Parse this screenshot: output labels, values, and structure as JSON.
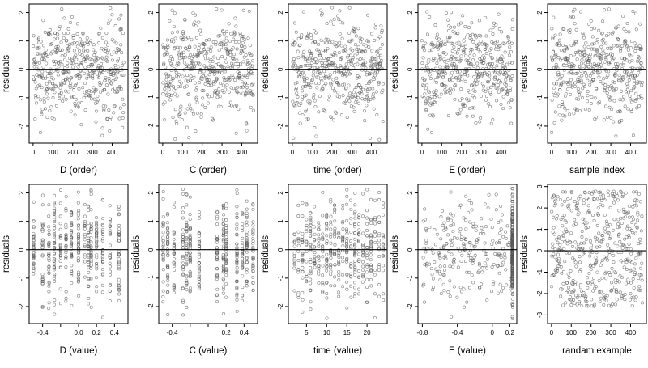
{
  "chart_data": [
    {
      "type": "scatter",
      "xlabel": "D (order)",
      "ylabel": "residuals",
      "xlim": [
        -20,
        480
      ],
      "ylim": [
        -2.6,
        2.3
      ],
      "xticks": [
        0,
        100,
        200,
        300,
        400
      ],
      "yticks": [
        -2,
        -1,
        0,
        1,
        2
      ],
      "hline": 0,
      "n_points": 460,
      "x_kind": "index",
      "y_profile": "normal",
      "point_color": "#555555",
      "grid": false
    },
    {
      "type": "scatter",
      "xlabel": "C (order)",
      "ylabel": "residuals",
      "xlim": [
        -20,
        480
      ],
      "ylim": [
        -2.6,
        2.3
      ],
      "xticks": [
        0,
        100,
        200,
        300,
        400
      ],
      "yticks": [
        -2,
        -1,
        0,
        1,
        2
      ],
      "hline": 0,
      "n_points": 460,
      "x_kind": "index",
      "y_profile": "normal",
      "point_color": "#555555",
      "grid": false
    },
    {
      "type": "scatter",
      "xlabel": "time (order)",
      "ylabel": "residuals",
      "xlim": [
        -20,
        480
      ],
      "ylim": [
        -2.6,
        2.3
      ],
      "xticks": [
        0,
        100,
        200,
        300,
        400
      ],
      "yticks": [
        -2,
        -1,
        0,
        1,
        2
      ],
      "hline": 0,
      "n_points": 460,
      "x_kind": "index",
      "y_profile": "normal",
      "point_color": "#555555",
      "grid": false
    },
    {
      "type": "scatter",
      "xlabel": "E (order)",
      "ylabel": "residuals",
      "xlim": [
        -20,
        480
      ],
      "ylim": [
        -2.6,
        2.3
      ],
      "xticks": [
        0,
        100,
        200,
        300,
        400
      ],
      "yticks": [
        -2,
        -1,
        0,
        1,
        2
      ],
      "hline": 0,
      "n_points": 460,
      "x_kind": "index",
      "y_profile": "normal",
      "point_color": "#555555",
      "grid": false
    },
    {
      "type": "scatter",
      "xlabel": "sample index",
      "ylabel": "residuals",
      "xlim": [
        -20,
        480
      ],
      "ylim": [
        -2.6,
        2.3
      ],
      "xticks": [
        0,
        100,
        200,
        300,
        400
      ],
      "yticks": [
        -2,
        -1,
        0,
        1,
        2
      ],
      "hline": 0,
      "n_points": 460,
      "x_kind": "index",
      "y_profile": "normal",
      "point_color": "#555555",
      "grid": false
    },
    {
      "type": "scatter",
      "xlabel": "D (value)",
      "ylabel": "residuals",
      "xlim": [
        -0.55,
        0.55
      ],
      "ylim": [
        -2.6,
        2.3
      ],
      "xticks": [
        -0.4,
        -0.2,
        0.0,
        0.2,
        0.4
      ],
      "xtick_labels": [
        "-0.4",
        "",
        "0.0",
        "0.2",
        "0.4"
      ],
      "yticks": [
        -2,
        -1,
        0,
        1,
        2
      ],
      "hline": 0,
      "n_points": 460,
      "x_kind": "columns",
      "x_values": [
        -0.5,
        -0.4,
        -0.33,
        -0.27,
        -0.2,
        -0.14,
        -0.08,
        0.0,
        0.07,
        0.11,
        0.14,
        0.2,
        0.27,
        0.35,
        0.45
      ],
      "y_profile": "normal",
      "point_color": "#555555",
      "grid": false
    },
    {
      "type": "scatter",
      "xlabel": "C (value)",
      "ylabel": "residuals",
      "xlim": [
        -0.55,
        0.55
      ],
      "ylim": [
        -2.6,
        2.3
      ],
      "xticks": [
        -0.4,
        -0.2,
        0.0,
        0.2,
        0.4
      ],
      "xtick_labels": [
        "-0.4",
        "",
        "",
        "0.2",
        "0.4"
      ],
      "yticks": [
        -2,
        -1,
        0,
        1,
        2
      ],
      "hline": 0,
      "n_points": 460,
      "x_kind": "columns",
      "x_values": [
        -0.5,
        -0.45,
        -0.38,
        -0.28,
        -0.24,
        -0.2,
        -0.1,
        0.1,
        0.17,
        0.2,
        0.32,
        0.38,
        0.43,
        0.5
      ],
      "y_profile": "normal",
      "point_color": "#555555",
      "grid": false
    },
    {
      "type": "scatter",
      "xlabel": "time (value)",
      "ylabel": "residuals",
      "xlim": [
        0.5,
        25
      ],
      "ylim": [
        -2.6,
        2.3
      ],
      "xticks": [
        5,
        10,
        15,
        20
      ],
      "yticks": [
        -2,
        -1,
        0,
        1,
        2
      ],
      "hline": 0,
      "n_points": 460,
      "x_kind": "columns",
      "x_values": [
        2,
        3,
        4,
        5,
        6,
        7,
        8,
        9,
        10,
        11,
        12,
        13,
        14,
        15,
        16,
        17,
        18,
        19,
        20,
        21,
        22,
        23,
        24
      ],
      "y_profile": "normal",
      "point_color": "#555555",
      "grid": false
    },
    {
      "type": "scatter",
      "xlabel": "E (value)",
      "ylabel": "residuals",
      "xlim": [
        -0.85,
        0.28
      ],
      "ylim": [
        -2.6,
        2.3
      ],
      "xticks": [
        -0.8,
        -0.4,
        0.0,
        0.2
      ],
      "yticks": [
        -2,
        -1,
        0,
        1,
        2
      ],
      "hline": 0,
      "n_points": 460,
      "x_kind": "skewed",
      "x_values": [
        -0.8,
        0.23
      ],
      "y_profile": "normal",
      "point_color": "#555555",
      "grid": false
    },
    {
      "type": "scatter",
      "xlabel": "randam example",
      "ylabel": "residuals",
      "xlim": [
        -20,
        480
      ],
      "ylim": [
        -3.4,
        3.1
      ],
      "xticks": [
        0,
        100,
        200,
        300,
        400
      ],
      "yticks": [
        -3,
        -2,
        -1,
        0,
        1,
        2,
        3
      ],
      "hline": 0,
      "n_points": 460,
      "x_kind": "index",
      "y_profile": "uniform",
      "point_color": "#555555",
      "grid": false
    }
  ]
}
